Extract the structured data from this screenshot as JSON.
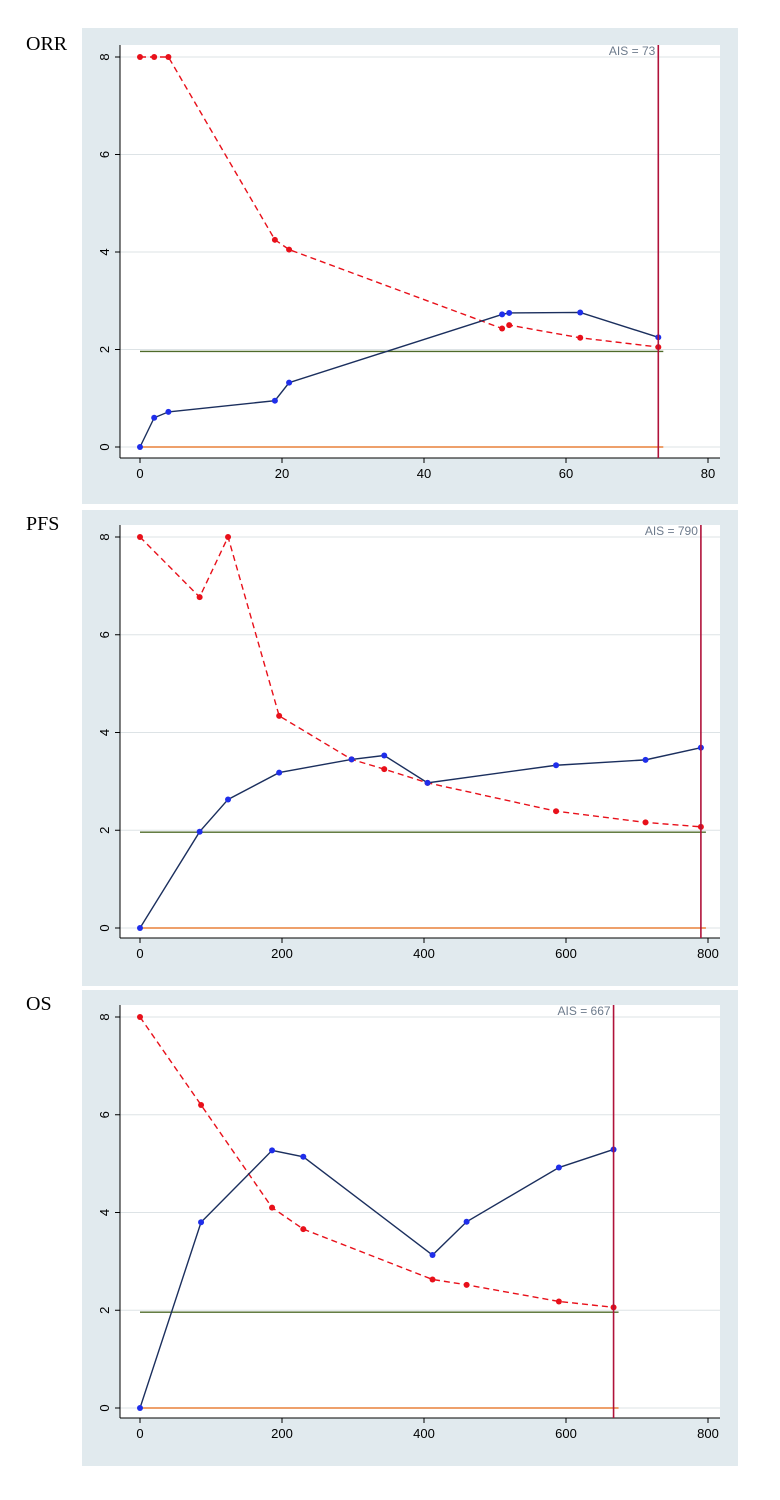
{
  "chart_data": [
    {
      "type": "line",
      "panel_label": "ORR",
      "xlim": [
        0,
        80
      ],
      "ylim": [
        0,
        8
      ],
      "x_ticks": [
        0,
        20,
        40,
        60,
        80
      ],
      "y_ticks": [
        0,
        2,
        4,
        6,
        8
      ],
      "grid": true,
      "ais_label": "AIS = 73",
      "ais_value": 73,
      "hlines": [
        {
          "y": 1.96,
          "color": "#4f6b2a"
        },
        {
          "y": 0,
          "color": "#e8813a"
        }
      ],
      "series": [
        {
          "style": "dashed",
          "color": "#e8101a",
          "x": [
            0,
            2,
            4,
            19,
            21,
            51,
            52,
            62,
            73
          ],
          "y": [
            8,
            8,
            8,
            4.25,
            4.05,
            2.43,
            2.5,
            2.24,
            2.05
          ]
        },
        {
          "style": "solid",
          "color": "#1b2f5e",
          "marker_color": "#1f2eea",
          "x": [
            0,
            2,
            4,
            19,
            21,
            51,
            52,
            62,
            73
          ],
          "y": [
            0,
            0.6,
            0.72,
            0.95,
            1.32,
            2.72,
            2.75,
            2.76,
            2.25
          ]
        }
      ]
    },
    {
      "type": "line",
      "panel_label": "PFS",
      "xlim": [
        0,
        800
      ],
      "ylim": [
        0,
        8
      ],
      "x_ticks": [
        0,
        200,
        400,
        600,
        800
      ],
      "y_ticks": [
        0,
        2,
        4,
        6,
        8
      ],
      "grid": true,
      "ais_label": "AIS = 790",
      "ais_value": 790,
      "hlines": [
        {
          "y": 1.96,
          "color": "#4f6b2a"
        },
        {
          "y": 0,
          "color": "#e8813a"
        }
      ],
      "series": [
        {
          "style": "dashed",
          "color": "#e8101a",
          "x": [
            0,
            84,
            124,
            196,
            298,
            344,
            405,
            586,
            712,
            790
          ],
          "y": [
            8,
            6.77,
            8,
            4.34,
            3.45,
            3.25,
            2.97,
            2.39,
            2.16,
            2.07
          ]
        },
        {
          "style": "solid",
          "color": "#1b2f5e",
          "marker_color": "#1f2eea",
          "x": [
            0,
            84,
            124,
            196,
            298,
            344,
            405,
            586,
            712,
            790
          ],
          "y": [
            0,
            1.97,
            2.63,
            3.18,
            3.45,
            3.53,
            2.97,
            3.33,
            3.44,
            3.69
          ]
        }
      ]
    },
    {
      "type": "line",
      "panel_label": "OS",
      "xlim": [
        0,
        800
      ],
      "ylim": [
        0,
        8
      ],
      "x_ticks": [
        0,
        200,
        400,
        600,
        800
      ],
      "y_ticks": [
        0,
        2,
        4,
        6,
        8
      ],
      "grid": true,
      "ais_label": "AIS = 667",
      "ais_value": 667,
      "hlines": [
        {
          "y": 1.96,
          "color": "#4f6b2a"
        },
        {
          "y": 0,
          "color": "#e8813a"
        }
      ],
      "series": [
        {
          "style": "dashed",
          "color": "#e8101a",
          "x": [
            0,
            86,
            186,
            230,
            412,
            460,
            590,
            667
          ],
          "y": [
            8,
            6.2,
            4.1,
            3.66,
            2.63,
            2.52,
            2.18,
            2.06
          ]
        },
        {
          "style": "solid",
          "color": "#1b2f5e",
          "marker_color": "#1f2eea",
          "x": [
            0,
            86,
            186,
            230,
            412,
            460,
            590,
            667
          ],
          "y": [
            0,
            3.8,
            5.27,
            5.14,
            3.13,
            3.81,
            4.92,
            5.29
          ]
        }
      ]
    }
  ]
}
